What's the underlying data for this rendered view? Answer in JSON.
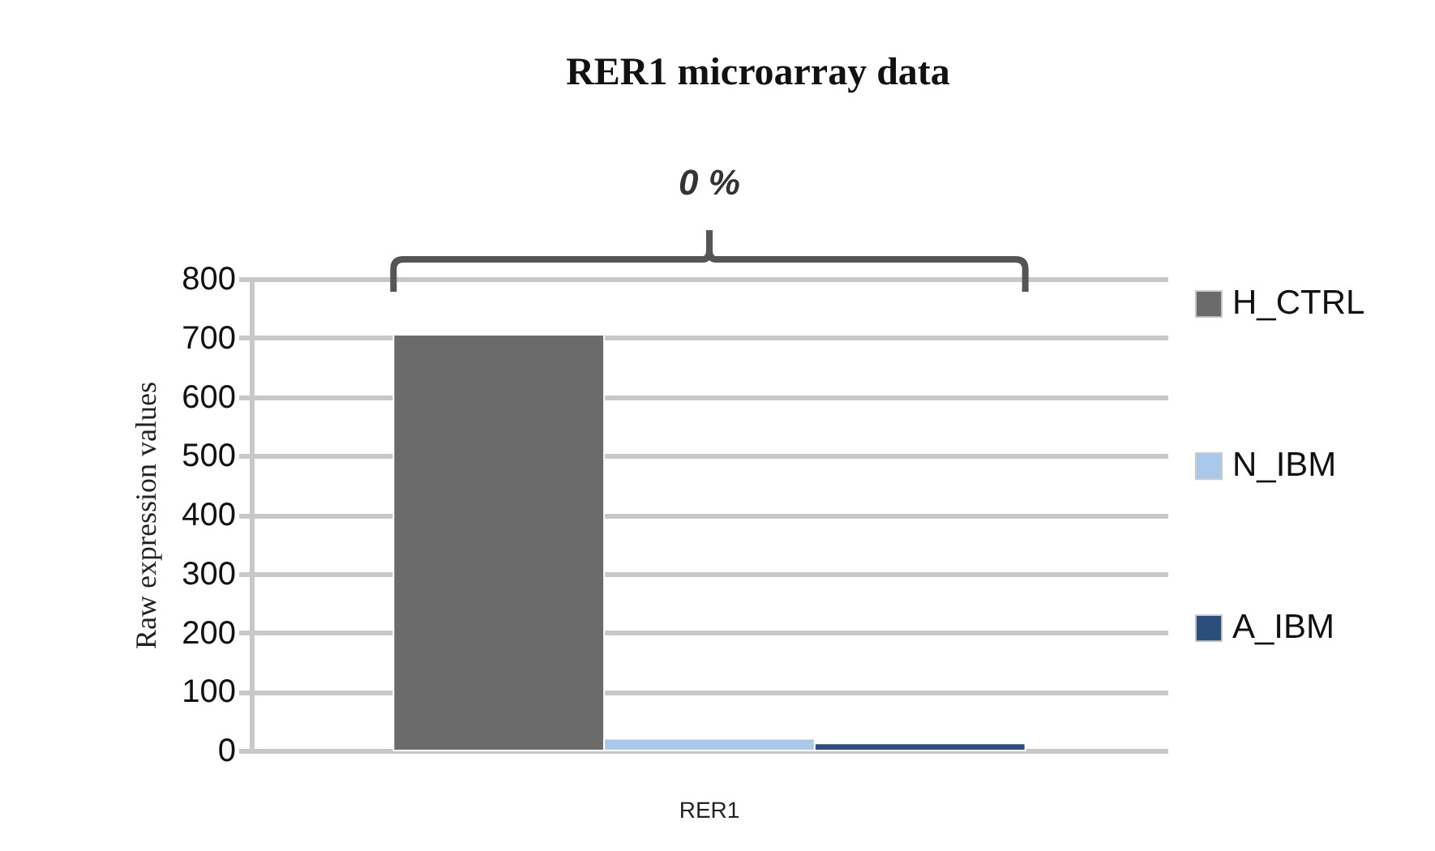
{
  "chart_data": {
    "type": "bar",
    "title": "RER1 microarray data",
    "ylabel": "Raw expression values",
    "categories": [
      "RER1"
    ],
    "series": [
      {
        "name": "H_CTRL",
        "color": "#6b6b6b",
        "values": [
          705
        ]
      },
      {
        "name": "N_IBM",
        "color": "#a9c8ea",
        "values": [
          20
        ]
      },
      {
        "name": "A_IBM",
        "color": "#2b4f7a",
        "values": [
          12
        ]
      }
    ],
    "ylim": [
      0,
      800
    ],
    "yticks": [
      0,
      100,
      200,
      300,
      400,
      500,
      600,
      700,
      800
    ],
    "grid": "y",
    "legend": "right",
    "annotations": [
      "0 %"
    ]
  }
}
